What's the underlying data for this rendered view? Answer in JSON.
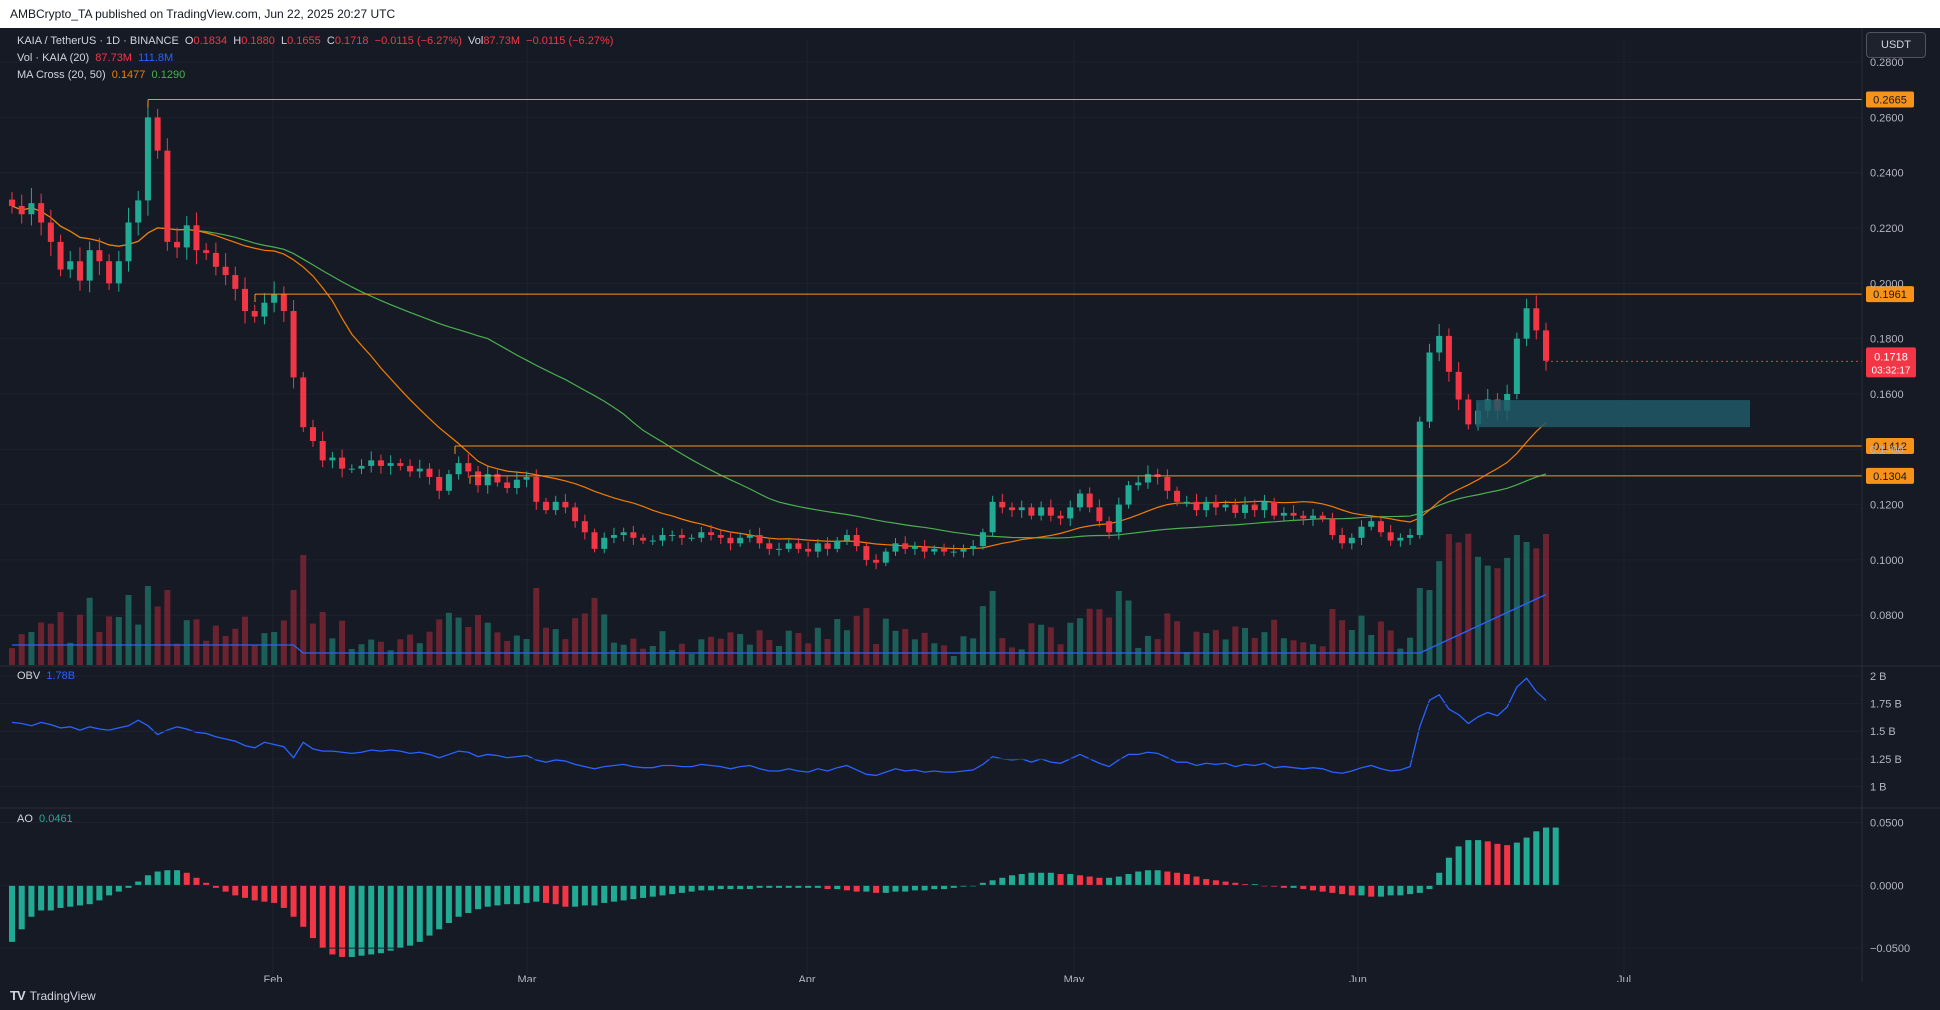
{
  "header": {
    "publisher": "AMBCrypto_TA published on TradingView.com, Jun 22, 2025 20:27 UTC"
  },
  "brand": {
    "name": "TradingView",
    "logo": "TV"
  },
  "currency_button": "USDT",
  "legend": {
    "symbol": "KAIA / TetherUS · 1D · BINANCE",
    "o_label": "O",
    "o": "0.1834",
    "h_label": "H",
    "h": "0.1880",
    "l_label": "L",
    "l": "0.1655",
    "c_label": "C",
    "c": "0.1718",
    "change": "−0.0115 (−6.27%)",
    "vol_label": "Vol",
    "vol": "87.73M",
    "vol_change": "−0.0115 (−6.27%)",
    "volume_label": "Vol · KAIA (20)",
    "volume_v1": "87.73M",
    "volume_v2": "111.8M",
    "ma_label": "MA Cross (20, 50)",
    "ma_v1": "0.1477",
    "ma_v2": "0.1290",
    "obv_label": "OBV",
    "obv_v": "1.78B",
    "ao_label": "AO",
    "ao_v": "0.0461"
  },
  "colors": {
    "background": "#161a25",
    "up": "#22ab94",
    "down": "#f23645",
    "ma_fast": "#f57c00",
    "ma_slow": "#4caf50",
    "obv": "#2962ff",
    "level": "#f7931a"
  },
  "chart_data": {
    "type": "candlestick",
    "symbol": "KAIA / TetherUS",
    "timeframe": "1D",
    "price_axis_ticks": [
      "0.2800",
      "0.2600",
      "0.2400",
      "0.2200",
      "0.2000",
      "0.1800",
      "0.1600",
      "0.1400",
      "0.1200",
      "0.1000",
      "0.0800"
    ],
    "ylim": [
      0.062,
      0.288
    ],
    "time_axis_ticks": [
      "Feb",
      "Mar",
      "Apr",
      "May",
      "Jun",
      "Jul"
    ],
    "horizontal_levels": [
      "0.2665",
      "0.1961",
      "0.1412",
      "0.1304"
    ],
    "current_price": "0.1718",
    "countdown": "03:32:17",
    "candles_close": [
      0.228,
      0.225,
      0.229,
      0.222,
      0.215,
      0.205,
      0.208,
      0.201,
      0.212,
      0.208,
      0.2,
      0.208,
      0.222,
      0.23,
      0.26,
      0.248,
      0.215,
      0.213,
      0.221,
      0.212,
      0.211,
      0.206,
      0.203,
      0.198,
      0.19,
      0.188,
      0.193,
      0.196,
      0.19,
      0.166,
      0.148,
      0.143,
      0.136,
      0.137,
      0.133,
      0.133,
      0.134,
      0.136,
      0.134,
      0.135,
      0.134,
      0.132,
      0.133,
      0.13,
      0.125,
      0.131,
      0.135,
      0.132,
      0.127,
      0.131,
      0.128,
      0.126,
      0.129,
      0.13,
      0.121,
      0.118,
      0.121,
      0.119,
      0.114,
      0.11,
      0.104,
      0.108,
      0.109,
      0.11,
      0.108,
      0.107,
      0.107,
      0.109,
      0.109,
      0.108,
      0.108,
      0.11,
      0.109,
      0.108,
      0.106,
      0.108,
      0.109,
      0.106,
      0.104,
      0.104,
      0.106,
      0.104,
      0.103,
      0.106,
      0.104,
      0.107,
      0.109,
      0.105,
      0.1,
      0.099,
      0.103,
      0.106,
      0.104,
      0.105,
      0.103,
      0.104,
      0.103,
      0.103,
      0.104,
      0.105,
      0.11,
      0.121,
      0.119,
      0.118,
      0.119,
      0.116,
      0.119,
      0.116,
      0.115,
      0.119,
      0.124,
      0.119,
      0.114,
      0.11,
      0.12,
      0.127,
      0.128,
      0.131,
      0.13,
      0.125,
      0.121,
      0.121,
      0.118,
      0.121,
      0.119,
      0.12,
      0.117,
      0.12,
      0.118,
      0.121,
      0.116,
      0.117,
      0.116,
      0.115,
      0.116,
      0.115,
      0.109,
      0.106,
      0.108,
      0.112,
      0.114,
      0.11,
      0.107,
      0.108,
      0.109,
      0.15,
      0.175,
      0.181,
      0.168,
      0.158,
      0.149,
      0.154,
      0.158,
      0.154,
      0.16,
      0.18,
      0.191,
      0.183,
      0.172
    ],
    "volume_ma": "dark-blue 20-period line",
    "obv_axis_ticks": [
      "2 B",
      "1.75 B",
      "1.5 B",
      "1.25 B",
      "1 B"
    ],
    "obv_ylim": [
      0.95,
      2.0
    ],
    "obv_values": [
      1.58,
      1.57,
      1.55,
      1.58,
      1.56,
      1.53,
      1.54,
      1.51,
      1.54,
      1.52,
      1.51,
      1.53,
      1.55,
      1.6,
      1.55,
      1.47,
      1.51,
      1.54,
      1.52,
      1.49,
      1.48,
      1.45,
      1.43,
      1.41,
      1.37,
      1.35,
      1.4,
      1.38,
      1.36,
      1.26,
      1.4,
      1.34,
      1.32,
      1.32,
      1.31,
      1.3,
      1.31,
      1.33,
      1.32,
      1.33,
      1.32,
      1.3,
      1.31,
      1.29,
      1.26,
      1.29,
      1.32,
      1.31,
      1.27,
      1.29,
      1.28,
      1.26,
      1.27,
      1.28,
      1.24,
      1.22,
      1.24,
      1.23,
      1.2,
      1.18,
      1.16,
      1.18,
      1.19,
      1.2,
      1.18,
      1.17,
      1.17,
      1.19,
      1.19,
      1.18,
      1.18,
      1.2,
      1.19,
      1.18,
      1.16,
      1.18,
      1.19,
      1.16,
      1.14,
      1.14,
      1.16,
      1.14,
      1.13,
      1.16,
      1.14,
      1.17,
      1.19,
      1.15,
      1.11,
      1.1,
      1.13,
      1.16,
      1.14,
      1.15,
      1.13,
      1.14,
      1.13,
      1.13,
      1.14,
      1.15,
      1.2,
      1.27,
      1.25,
      1.24,
      1.25,
      1.22,
      1.25,
      1.22,
      1.21,
      1.25,
      1.29,
      1.25,
      1.21,
      1.18,
      1.24,
      1.29,
      1.29,
      1.31,
      1.3,
      1.26,
      1.22,
      1.22,
      1.19,
      1.21,
      1.2,
      1.21,
      1.18,
      1.2,
      1.19,
      1.21,
      1.17,
      1.18,
      1.17,
      1.16,
      1.17,
      1.16,
      1.13,
      1.12,
      1.14,
      1.17,
      1.19,
      1.16,
      1.14,
      1.15,
      1.18,
      1.54,
      1.78,
      1.83,
      1.7,
      1.65,
      1.57,
      1.63,
      1.67,
      1.64,
      1.72,
      1.9,
      1.98,
      1.86,
      1.78
    ],
    "ao_axis_ticks": [
      "0.0500",
      "0.0000",
      "−0.0500"
    ],
    "ao_ylim": [
      -0.065,
      0.052
    ],
    "ao_values": [
      -0.045,
      -0.035,
      -0.025,
      -0.02,
      -0.02,
      -0.018,
      -0.017,
      -0.016,
      -0.015,
      -0.012,
      -0.008,
      -0.005,
      -0.002,
      0.003,
      0.008,
      0.011,
      0.012,
      0.012,
      0.01,
      0.006,
      0.002,
      -0.002,
      -0.005,
      -0.008,
      -0.01,
      -0.012,
      -0.013,
      -0.014,
      -0.018,
      -0.025,
      -0.033,
      -0.042,
      -0.05,
      -0.055,
      -0.057,
      -0.057,
      -0.056,
      -0.055,
      -0.054,
      -0.052,
      -0.05,
      -0.048,
      -0.045,
      -0.04,
      -0.035,
      -0.03,
      -0.025,
      -0.022,
      -0.019,
      -0.017,
      -0.016,
      -0.015,
      -0.015,
      -0.014,
      -0.013,
      -0.014,
      -0.015,
      -0.017,
      -0.017,
      -0.016,
      -0.016,
      -0.014,
      -0.013,
      -0.012,
      -0.011,
      -0.01,
      -0.009,
      -0.008,
      -0.007,
      -0.006,
      -0.005,
      -0.004,
      -0.004,
      -0.003,
      -0.003,
      -0.003,
      -0.003,
      -0.002,
      -0.002,
      -0.002,
      -0.002,
      -0.002,
      -0.002,
      -0.002,
      -0.003,
      -0.003,
      -0.004,
      -0.005,
      -0.005,
      -0.006,
      -0.006,
      -0.005,
      -0.005,
      -0.004,
      -0.004,
      -0.003,
      -0.003,
      -0.002,
      -0.001,
      0.0,
      0.002,
      0.004,
      0.006,
      0.008,
      0.009,
      0.01,
      0.01,
      0.01,
      0.009,
      0.009,
      0.008,
      0.007,
      0.006,
      0.006,
      0.007,
      0.009,
      0.011,
      0.012,
      0.012,
      0.011,
      0.01,
      0.009,
      0.007,
      0.005,
      0.004,
      0.003,
      0.002,
      0.001,
      0.001,
      0.0,
      -0.001,
      -0.002,
      -0.002,
      -0.003,
      -0.004,
      -0.005,
      -0.006,
      -0.007,
      -0.008,
      -0.008,
      -0.009,
      -0.009,
      -0.008,
      -0.008,
      -0.007,
      -0.006,
      -0.003,
      0.01,
      0.022,
      0.031,
      0.036,
      0.036,
      0.035,
      0.033,
      0.032,
      0.034,
      0.038,
      0.043,
      0.046,
      0.046
    ]
  }
}
